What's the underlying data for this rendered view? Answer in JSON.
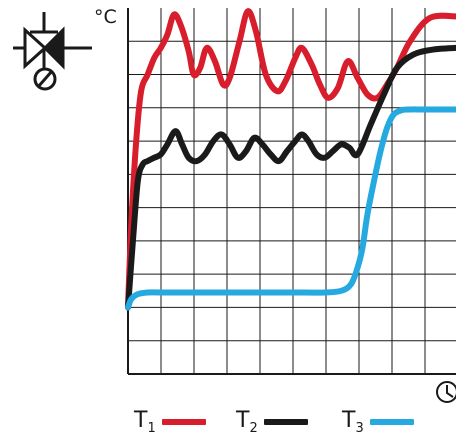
{
  "chart_data": {
    "type": "line",
    "ylabel": "°C",
    "xlabel_icon": "clock-icon",
    "x_range": [
      0,
      10
    ],
    "y_range": [
      0,
      11
    ],
    "grid": true,
    "legend_placement": "bottom",
    "series": [
      {
        "name": "T",
        "subscript": "1",
        "color": "#d81e2c",
        "x": [
          0,
          0.1,
          0.25,
          0.4,
          0.6,
          0.8,
          1.0,
          1.2,
          1.4,
          1.6,
          1.85,
          2.0,
          2.2,
          2.4,
          2.65,
          2.9,
          3.1,
          3.4,
          3.65,
          3.9,
          4.2,
          4.55,
          4.8,
          5.1,
          5.3,
          5.6,
          5.85,
          6.1,
          6.4,
          6.7,
          7.0,
          7.3,
          7.6,
          7.9,
          8.2,
          8.6,
          9.2,
          10.0
        ],
        "y": [
          2.0,
          4.5,
          7.0,
          8.5,
          9.0,
          9.5,
          9.8,
          10.2,
          10.8,
          10.5,
          9.7,
          9.0,
          9.2,
          9.8,
          9.4,
          8.7,
          8.9,
          10.0,
          10.9,
          10.3,
          9.0,
          8.5,
          8.8,
          9.5,
          9.8,
          9.3,
          8.7,
          8.3,
          8.6,
          9.4,
          8.9,
          8.4,
          8.3,
          8.7,
          9.2,
          10.0,
          10.7,
          10.75
        ]
      },
      {
        "name": "T",
        "subscript": "2",
        "color": "#1a1a1a",
        "x": [
          0,
          0.15,
          0.3,
          0.45,
          0.6,
          0.8,
          1.0,
          1.2,
          1.45,
          1.65,
          1.85,
          2.1,
          2.35,
          2.6,
          2.85,
          3.1,
          3.35,
          3.6,
          3.85,
          4.1,
          4.35,
          4.6,
          4.85,
          5.1,
          5.3,
          5.5,
          5.75,
          6.0,
          6.25,
          6.5,
          6.75,
          7.0,
          7.4,
          7.8,
          8.2,
          8.7,
          9.3,
          10.0
        ],
        "y": [
          2.0,
          4.0,
          5.8,
          6.3,
          6.4,
          6.5,
          6.6,
          6.9,
          7.3,
          6.9,
          6.5,
          6.4,
          6.6,
          7.0,
          7.2,
          6.9,
          6.5,
          6.7,
          7.1,
          6.9,
          6.6,
          6.4,
          6.7,
          7.0,
          7.2,
          7.0,
          6.6,
          6.5,
          6.7,
          6.9,
          6.8,
          6.6,
          7.5,
          8.4,
          9.2,
          9.6,
          9.75,
          9.8
        ]
      },
      {
        "name": "T",
        "subscript": "3",
        "color": "#26a9e0",
        "x": [
          0,
          0.1,
          0.3,
          0.6,
          1.0,
          2.0,
          3.0,
          4.0,
          5.0,
          6.0,
          6.5,
          6.8,
          7.0,
          7.15,
          7.3,
          7.5,
          7.7,
          7.9,
          8.1,
          8.35,
          8.6,
          9.0,
          9.5,
          10.0
        ],
        "y": [
          2.0,
          2.25,
          2.4,
          2.45,
          2.45,
          2.45,
          2.45,
          2.45,
          2.45,
          2.45,
          2.5,
          2.7,
          3.2,
          3.8,
          4.8,
          5.8,
          6.7,
          7.4,
          7.8,
          7.93,
          7.95,
          7.95,
          7.95,
          7.95
        ]
      }
    ]
  }
}
